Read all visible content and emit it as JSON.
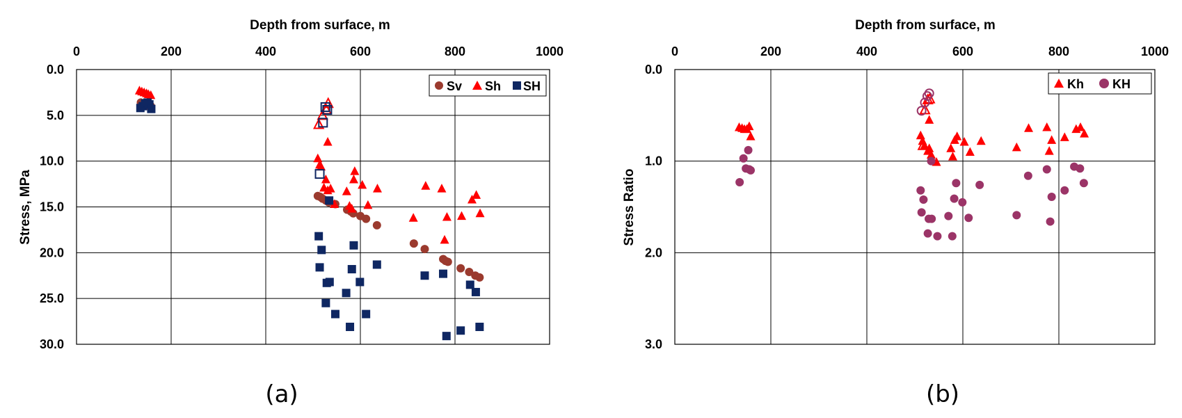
{
  "chart_data": [
    {
      "type": "scatter",
      "caption": "(a)",
      "xlabel": "Depth from surface, m",
      "ylabel": "Stress, MPa",
      "xlim": [
        0,
        1000
      ],
      "ylim": [
        0,
        30
      ],
      "y_inverted": true,
      "x_axis_position": "top",
      "x_ticks": [
        "0",
        "200",
        "400",
        "600",
        "800",
        "1000"
      ],
      "y_ticks": [
        "0.0",
        "5.0",
        "10.0",
        "15.0",
        "20.0",
        "25.0",
        "30.0"
      ],
      "grid": true,
      "legend_position": "top-right",
      "series": [
        {
          "name": "Sv",
          "marker": "circle",
          "color": "#9b3a2e",
          "points": [
            [
              136,
              3.6
            ],
            [
              143,
              3.8
            ],
            [
              149,
              3.9
            ],
            [
              153,
              4.0
            ],
            [
              157,
              4.0
            ],
            [
              510,
              13.8
            ],
            [
              515,
              13.9
            ],
            [
              520,
              14.1
            ],
            [
              527,
              14.3
            ],
            [
              533,
              14.5
            ],
            [
              547,
              14.7
            ],
            [
              572,
              15.3
            ],
            [
              580,
              15.5
            ],
            [
              585,
              15.7
            ],
            [
              600,
              16.0
            ],
            [
              612,
              16.3
            ],
            [
              635,
              17.0
            ],
            [
              713,
              19.0
            ],
            [
              736,
              19.6
            ],
            [
              775,
              20.7
            ],
            [
              780,
              20.9
            ],
            [
              785,
              21.0
            ],
            [
              812,
              21.7
            ],
            [
              830,
              22.1
            ],
            [
              843,
              22.5
            ],
            [
              852,
              22.7
            ]
          ]
        },
        {
          "name": "Sh",
          "marker": "triangle",
          "color": "#ff0000",
          "points": [
            [
              133,
              2.3
            ],
            [
              138,
              2.4
            ],
            [
              143,
              2.5
            ],
            [
              148,
              2.6
            ],
            [
              152,
              2.7
            ],
            [
              157,
              2.8
            ],
            [
              510,
              9.7
            ],
            [
              514,
              10.4
            ],
            [
              517,
              10.6
            ],
            [
              523,
              12.9
            ],
            [
              527,
              12.0
            ],
            [
              531,
              13.2
            ],
            [
              537,
              13.0
            ],
            [
              545,
              14.7
            ],
            [
              571,
              13.3
            ],
            [
              577,
              14.9
            ],
            [
              582,
              15.2
            ],
            [
              586,
              12.0
            ],
            [
              588,
              11.1
            ],
            [
              604,
              12.6
            ],
            [
              616,
              14.8
            ],
            [
              636,
              13.0
            ],
            [
              712,
              16.2
            ],
            [
              738,
              12.7
            ],
            [
              772,
              13.0
            ],
            [
              778,
              18.6
            ],
            [
              783,
              16.1
            ],
            [
              814,
              16.0
            ],
            [
              836,
              14.2
            ],
            [
              845,
              13.7
            ],
            [
              853,
              15.7
            ],
            [
              531,
              7.9
            ]
          ],
          "open_points": [
            [
              512,
              6.0
            ],
            [
              520,
              5.0
            ],
            [
              528,
              4.4
            ],
            [
              532,
              3.7
            ]
          ]
        },
        {
          "name": "SH",
          "marker": "square",
          "color": "#0f2762",
          "points": [
            [
              135,
              4.2
            ],
            [
              140,
              4.0
            ],
            [
              145,
              3.7
            ],
            [
              150,
              3.6
            ],
            [
              154,
              3.8
            ],
            [
              158,
              4.3
            ],
            [
              512,
              18.2
            ],
            [
              514,
              21.6
            ],
            [
              518,
              19.7
            ],
            [
              527,
              25.5
            ],
            [
              529,
              23.3
            ],
            [
              535,
              23.2
            ],
            [
              534,
              14.3
            ],
            [
              547,
              26.7
            ],
            [
              570,
              24.4
            ],
            [
              578,
              28.1
            ],
            [
              582,
              21.8
            ],
            [
              586,
              19.2
            ],
            [
              599,
              23.2
            ],
            [
              612,
              26.7
            ],
            [
              635,
              21.3
            ],
            [
              736,
              22.5
            ],
            [
              775,
              22.3
            ],
            [
              782,
              29.1
            ],
            [
              812,
              28.5
            ],
            [
              832,
              23.5
            ],
            [
              844,
              24.3
            ],
            [
              852,
              28.1
            ]
          ],
          "open_points": [
            [
              514,
              11.4
            ],
            [
              521,
              5.8
            ],
            [
              526,
              4.1
            ],
            [
              530,
              4.4
            ]
          ]
        }
      ]
    },
    {
      "type": "scatter",
      "caption": "(b)",
      "xlabel": "Depth from surface, m",
      "ylabel": "Stress Ratio",
      "xlim": [
        0,
        1000
      ],
      "ylim": [
        0,
        3
      ],
      "y_inverted": true,
      "x_axis_position": "top",
      "x_ticks": [
        "0",
        "200",
        "400",
        "600",
        "800",
        "1000"
      ],
      "y_ticks": [
        "0.0",
        "1.0",
        "2.0",
        "3.0"
      ],
      "grid": true,
      "legend_position": "top-right",
      "series": [
        {
          "name": "Kh",
          "marker": "triangle",
          "color": "#ff0000",
          "points": [
            [
              134,
              0.63
            ],
            [
              140,
              0.64
            ],
            [
              145,
              0.65
            ],
            [
              150,
              0.65
            ],
            [
              155,
              0.62
            ],
            [
              158,
              0.73
            ],
            [
              512,
              0.72
            ],
            [
              516,
              0.78
            ],
            [
              520,
              0.83
            ],
            [
              527,
              0.89
            ],
            [
              530,
              0.86
            ],
            [
              534,
              0.93
            ],
            [
              530,
              0.55
            ],
            [
              545,
              1.01
            ],
            [
              575,
              0.86
            ],
            [
              579,
              0.95
            ],
            [
              583,
              0.77
            ],
            [
              588,
              0.73
            ],
            [
              603,
              0.79
            ],
            [
              615,
              0.9
            ],
            [
              638,
              0.78
            ],
            [
              712,
              0.85
            ],
            [
              737,
              0.64
            ],
            [
              775,
              0.63
            ],
            [
              780,
              0.89
            ],
            [
              785,
              0.77
            ],
            [
              812,
              0.74
            ],
            [
              836,
              0.65
            ],
            [
              845,
              0.63
            ],
            [
              853,
              0.7
            ]
          ],
          "open_points": [
            [
              517,
              0.83
            ],
            [
              521,
              0.44
            ],
            [
              527,
              0.33
            ],
            [
              531,
              0.32
            ]
          ]
        },
        {
          "name": "KH",
          "marker": "circle",
          "color": "#9b3467",
          "points": [
            [
              135,
              1.23
            ],
            [
              143,
              0.97
            ],
            [
              148,
              1.08
            ],
            [
              153,
              0.88
            ],
            [
              155,
              1.09
            ],
            [
              158,
              1.1
            ],
            [
              512,
              1.32
            ],
            [
              514,
              1.56
            ],
            [
              518,
              1.42
            ],
            [
              527,
              1.79
            ],
            [
              529,
              1.63
            ],
            [
              535,
              1.63
            ],
            [
              534,
              1.0
            ],
            [
              547,
              1.82
            ],
            [
              570,
              1.6
            ],
            [
              578,
              1.82
            ],
            [
              582,
              1.41
            ],
            [
              586,
              1.24
            ],
            [
              599,
              1.45
            ],
            [
              612,
              1.62
            ],
            [
              635,
              1.26
            ],
            [
              712,
              1.59
            ],
            [
              736,
              1.16
            ],
            [
              775,
              1.09
            ],
            [
              782,
              1.66
            ],
            [
              785,
              1.39
            ],
            [
              812,
              1.32
            ],
            [
              832,
              1.06
            ],
            [
              844,
              1.08
            ],
            [
              852,
              1.24
            ]
          ],
          "open_points": [
            [
              514,
              0.45
            ],
            [
              521,
              0.36
            ],
            [
              526,
              0.29
            ],
            [
              530,
              0.26
            ]
          ]
        }
      ]
    }
  ]
}
